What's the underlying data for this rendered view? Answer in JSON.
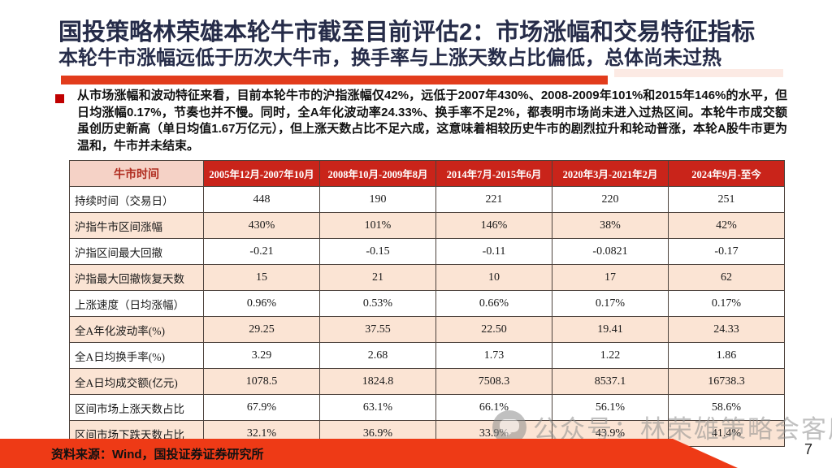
{
  "slide": {
    "title": "国投策略林荣雄本轮牛市截至目前评估2：市场涨幅和交易特征指标",
    "subtitle": "本轮牛市涨幅远低于历次大牛市，换手率与上涨天数占比偏低，总体尚未过热",
    "body_paragraph": "从市场涨幅和波动特征来看，目前本轮牛市的沪指涨幅仅42%，远低于2007年430%、2008-2009年101%和2015年146%的水平，但日均涨幅0.17%，节奏也并不慢。同时，全A年化波动率24.33%、换手率不足2%，都表明市场尚未进入过热区间。本轮牛市成交额虽创历史新高（单日均值1.67万亿元），但上涨天数占比不足六成，这意味着相较历史牛市的剧烈拉升和轮动普涨，本轮A股牛市更为温和，牛市并未结束。"
  },
  "table": {
    "header": [
      "牛市时间",
      "2005年12月-2007年10月",
      "2008年10月-2009年8月",
      "2014年7月-2015年6月",
      "2020年3月-2021年2月",
      "2024年9月-至今"
    ],
    "rows": [
      {
        "label": "持续时间（交易日）",
        "values": [
          "448",
          "190",
          "221",
          "220",
          "251"
        ]
      },
      {
        "label": "沪指牛市区间涨幅",
        "values": [
          "430%",
          "101%",
          "146%",
          "38%",
          "42%"
        ]
      },
      {
        "label": "沪指区间最大回撤",
        "values": [
          "-0.21",
          "-0.15",
          "-0.11",
          "-0.0821",
          "-0.17"
        ]
      },
      {
        "label": "沪指最大回撤恢复天数",
        "values": [
          "15",
          "21",
          "10",
          "17",
          "62"
        ]
      },
      {
        "label": "上涨速度（日均涨幅）",
        "values": [
          "0.96%",
          "0.53%",
          "0.66%",
          "0.17%",
          "0.17%"
        ]
      },
      {
        "label": "全A年化波动率(%)",
        "values": [
          "29.25",
          "37.55",
          "22.50",
          "19.41",
          "24.33"
        ]
      },
      {
        "label": "全A日均换手率(%)",
        "values": [
          "3.29",
          "2.68",
          "1.73",
          "1.22",
          "1.86"
        ]
      },
      {
        "label": "全A日均成交额(亿元)",
        "values": [
          "1078.5",
          "1824.8",
          "7508.3",
          "8537.1",
          "16738.3"
        ]
      },
      {
        "label": "区间市场上涨天数占比",
        "values": [
          "67.9%",
          "63.1%",
          "66.1%",
          "56.1%",
          "58.6%"
        ]
      },
      {
        "label": "区间市场下跌天数占比",
        "values": [
          "32.1%",
          "36.9%",
          "33.9%",
          "43.9%",
          "41.4%"
        ]
      }
    ]
  },
  "watermark": {
    "icon": "chat-bubble-icon",
    "text": "公众号：林荣雄策略会客厅"
  },
  "footer": {
    "source": "资料来源：Wind，国投证券证券研究所",
    "page_number": "7"
  },
  "colors": {
    "title_navy": "#262c49",
    "accent_red_bar": "#e23c1c",
    "bullet_red": "#c00000",
    "table_header_red": "#c9241a",
    "table_header_corner_pink": "#f5d2c6",
    "table_row_peach": "#fbe4d4",
    "footer_red": "#ee3a16"
  }
}
